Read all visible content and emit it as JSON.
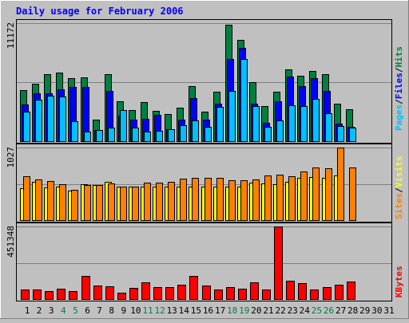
{
  "chart_data": {
    "type": "bar",
    "title": "Daily usage for February 2006",
    "days": [
      "1",
      "2",
      "3",
      "4",
      "5",
      "6",
      "7",
      "8",
      "9",
      "10",
      "11",
      "12",
      "13",
      "14",
      "15",
      "16",
      "17",
      "18",
      "19",
      "20",
      "21",
      "22",
      "23",
      "24",
      "25",
      "26",
      "27",
      "28",
      "29",
      "30",
      "31"
    ],
    "weekend_days": [
      "4",
      "5",
      "11",
      "12",
      "18",
      "19",
      "25",
      "26"
    ],
    "panels": {
      "hits_panel": {
        "max_label": "11172",
        "ymax": 11172,
        "labels": [
          "Pages",
          "/",
          "Files",
          "/",
          "Hits"
        ],
        "series": [
          {
            "name": "Hits",
            "color": "#008040",
            "values": [
              4850,
              5470,
              6360,
              6520,
              5980,
              6020,
              2050,
              6360,
              3790,
              2920,
              3680,
              2880,
              2530,
              3180,
              5180,
              2780,
              4650,
              10990,
              9570,
              5580,
              3350,
              4650,
              6820,
              6190,
              6650,
              6360,
              3570,
              3050
            ]
          },
          {
            "name": "Files",
            "color": "#0000FF",
            "values": [
              3440,
              4550,
              4520,
              4920,
              5120,
              5160,
              1020,
              4770,
              2440,
              2030,
              2100,
              2460,
              1150,
              2060,
              4100,
              2010,
              3560,
              7810,
              8810,
              3520,
              1740,
              3790,
              6140,
              5190,
              5930,
              4780,
              1660,
              1350
            ]
          },
          {
            "name": "Pages",
            "color": "#00C0FF",
            "values": [
              2830,
              3900,
              4300,
              4220,
              1880,
              900,
              1020,
              1300,
              2930,
              1260,
              920,
              970,
              1170,
              1490,
              1940,
              1370,
              3250,
              4790,
              7740,
              3340,
              1330,
              1970,
              3420,
              3300,
              3990,
              2660,
              1460,
              1300
            ]
          }
        ]
      },
      "visits_panel": {
        "max_label": "1027",
        "ymax": 1027,
        "labels": [
          "Sites",
          "/",
          "Visits"
        ],
        "series": [
          {
            "name": "Visits",
            "color": "#FFFF00",
            "values": [
              455,
              545,
              460,
              470,
              418,
              511,
              493,
              543,
              471,
              471,
              470,
              470,
              470,
              470,
              470,
              470,
              470,
              470,
              470,
              533,
              524,
              509,
              538,
              601,
              604,
              596,
              633,
              0
            ]
          },
          {
            "name": "Sites",
            "color": "#FF8000",
            "values": [
              626,
              571,
              551,
              510,
              427,
              496,
              494,
              514,
              473,
              471,
              526,
              536,
              541,
              584,
              603,
              602,
              599,
              559,
              561,
              571,
              633,
              641,
              626,
              692,
              748,
              739,
              1027,
              744
            ]
          }
        ]
      },
      "kbytes_panel": {
        "max_label": "451348",
        "ymax": 451348,
        "labels": [
          "KBytes"
        ],
        "series": [
          {
            "name": "KBytes",
            "color": "#FF0000",
            "values": [
              57810,
              60520,
              50240,
              62030,
              50710,
              143790,
              82390,
              78760,
              41810,
              68070,
              104390,
              72260,
              73210,
              90300,
              144100,
              84500,
              57440,
              76030,
              64310,
              103750,
              57400,
              451350,
              116450,
              97850,
              61700,
              73210,
              89960,
              106740
            ]
          }
        ]
      }
    }
  }
}
